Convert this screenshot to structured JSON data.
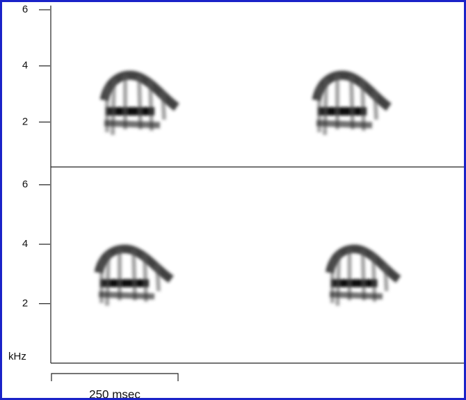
{
  "chart_data": [
    {
      "type": "spectrogram",
      "ylim": [
        0.4,
        6.1
      ],
      "yticks": [
        2,
        4,
        6
      ]
    },
    {
      "type": "spectrogram",
      "ylim": [
        0,
        6.6
      ],
      "yticks": [
        2,
        4,
        6
      ],
      "y_label": "kHz",
      "scale_bar_label": "250 msec"
    }
  ]
}
